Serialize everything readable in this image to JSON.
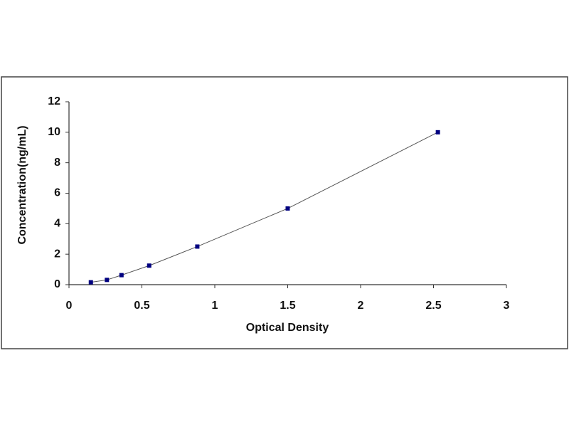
{
  "chart_data": {
    "type": "scatter",
    "xlabel": "Optical Density",
    "ylabel": "Concentration(ng/mL)",
    "x": [
      0.15,
      0.26,
      0.36,
      0.55,
      0.88,
      1.5,
      2.53
    ],
    "values": [
      0.156,
      0.312,
      0.625,
      1.25,
      2.5,
      5,
      10
    ],
    "color": "#000080",
    "line_color": "#555555",
    "connect": true,
    "xlim": [
      0,
      3
    ],
    "xticks": [
      0,
      0.5,
      1,
      1.5,
      2,
      2.5,
      3
    ],
    "ylim": [
      0,
      12
    ],
    "yticks": [
      0,
      2,
      4,
      6,
      8,
      10,
      12
    ],
    "grid": false
  }
}
